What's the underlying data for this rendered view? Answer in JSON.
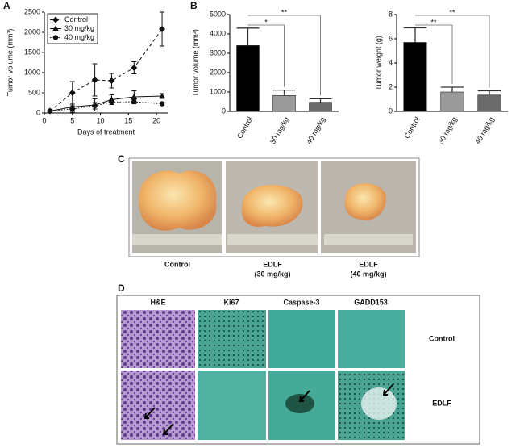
{
  "panel_labels": [
    "A",
    "B",
    "C",
    "D"
  ],
  "chart_data": [
    {
      "type": "line",
      "x_label": "Days of treatment",
      "y_label": "Tumor volume (mm³)",
      "x": [
        1,
        5,
        9,
        12,
        16,
        21
      ],
      "xlim": [
        0,
        22
      ],
      "xticks": [
        0,
        5,
        10,
        15,
        20
      ],
      "ylim": [
        0,
        2500
      ],
      "yticks": [
        0,
        500,
        1000,
        1500,
        2000,
        2500
      ],
      "legend": "top-left",
      "series": [
        {
          "name": "Control",
          "color": "#111111",
          "marker": "diamond",
          "dash": "dashed",
          "values": [
            50,
            500,
            820,
            800,
            1120,
            2080
          ],
          "errors": [
            0,
            280,
            400,
            180,
            150,
            420
          ]
        },
        {
          "name": "30 mg/kg",
          "color": "#111111",
          "marker": "triangle",
          "dash": "solid",
          "values": [
            50,
            150,
            200,
            330,
            400,
            420
          ],
          "errors": [
            0,
            100,
            150,
            120,
            150,
            60
          ]
        },
        {
          "name": "40 mg/kg",
          "color": "#111111",
          "marker": "circle",
          "dash": "dotted",
          "values": [
            50,
            100,
            180,
            270,
            280,
            230
          ],
          "errors": [
            0,
            80,
            80,
            60,
            50,
            40
          ]
        }
      ]
    },
    {
      "type": "bar",
      "y_label": "Tumor volume (mm³)",
      "categories": [
        "Control",
        "30 mg/kg",
        "40 mg/kg"
      ],
      "values": [
        3400,
        820,
        470
      ],
      "errors": [
        900,
        280,
        180
      ],
      "colors": [
        "#000000",
        "#9a9a9a",
        "#6b6b6b"
      ],
      "ylim": [
        0,
        5000
      ],
      "yticks": [
        0,
        1000,
        2000,
        3000,
        4000,
        5000
      ],
      "significance": [
        {
          "from": 0,
          "to": 1,
          "label": "*"
        },
        {
          "from": 0,
          "to": 2,
          "label": "**"
        }
      ]
    },
    {
      "type": "bar",
      "y_label": "Tumor weight (g)",
      "categories": [
        "Control",
        "30 mg/kg",
        "40 mg/kg"
      ],
      "values": [
        5.7,
        1.6,
        1.35
      ],
      "errors": [
        1.2,
        0.4,
        0.35
      ],
      "colors": [
        "#000000",
        "#9a9a9a",
        "#6b6b6b"
      ],
      "ylim": [
        0,
        8
      ],
      "yticks": [
        0,
        2,
        4,
        6,
        8
      ],
      "significance": [
        {
          "from": 0,
          "to": 1,
          "label": "**"
        },
        {
          "from": 0,
          "to": 2,
          "label": "**"
        }
      ]
    }
  ],
  "photos": {
    "captions": [
      [
        "Control"
      ],
      [
        "EDLF",
        "(30 mg/kg)"
      ],
      [
        "EDLF",
        "(40 mg/kg)"
      ]
    ]
  },
  "histology": {
    "columns": [
      "H&E",
      "Ki67",
      "Caspase-3",
      "GADD153"
    ],
    "rows": [
      "Control",
      "EDLF"
    ]
  }
}
